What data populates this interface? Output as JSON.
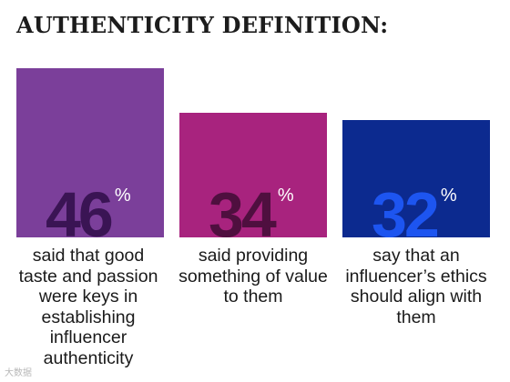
{
  "title": "AUTHENTICITY DEFINITION:",
  "chart_data": {
    "type": "bar",
    "title": "AUTHENTICITY DEFINITION:",
    "categories": [
      "said that good taste and passion were keys in establishing influencer authenticity",
      "said providing something of value to them",
      "say that an influencer’s ethics should align with them"
    ],
    "values": [
      46,
      34,
      32
    ],
    "unit": "%",
    "ylim": [
      0,
      55
    ],
    "grid": false,
    "legend": "none",
    "colors": [
      "#7b3f9a",
      "#a8237e",
      "#0c2a8f"
    ],
    "label_colors": [
      "#3a1454",
      "#4f0f3f",
      "#1d55f0"
    ],
    "bars": [
      {
        "value": "46",
        "unit": "%",
        "caption": "said that good taste and passion were keys in establishing influencer authenticity"
      },
      {
        "value": "34",
        "unit": "%",
        "caption": "said providing something of value to them"
      },
      {
        "value": "32",
        "unit": "%",
        "caption": "say that an influencer’s ethics should align with them"
      }
    ]
  },
  "watermark": "大数据"
}
